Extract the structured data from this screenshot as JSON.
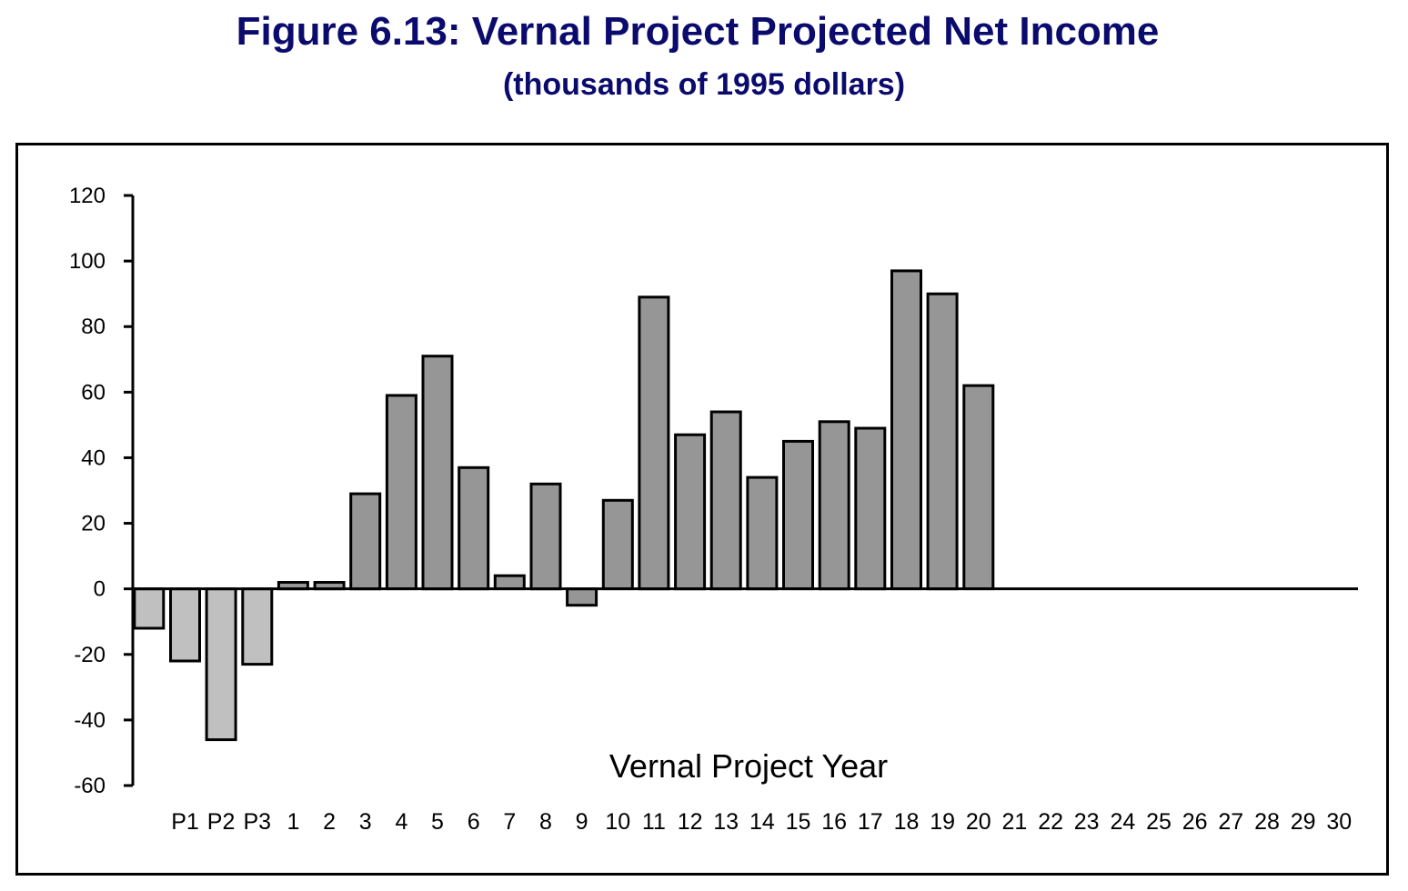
{
  "page": {
    "title": "Figure 6.13: Vernal Project Projected Net Income",
    "subtitle": "(thousands of 1995 dollars)"
  },
  "chart_data": {
    "type": "bar",
    "title": "Figure 6.13: Vernal Project Projected Net Income",
    "subtitle": "(thousands of 1995 dollars)",
    "xlabel": "Vernal Project Year",
    "ylabel": "",
    "ylim": [
      -60,
      120
    ],
    "yticks": [
      120,
      100,
      80,
      60,
      40,
      20,
      0,
      -20,
      -40,
      -60
    ],
    "categories": [
      "",
      "P1",
      "P2",
      "P3",
      "1",
      "2",
      "3",
      "4",
      "5",
      "6",
      "7",
      "8",
      "9",
      "10",
      "11",
      "12",
      "13",
      "14",
      "15",
      "16",
      "17",
      "18",
      "19",
      "20",
      "21",
      "22",
      "23",
      "24",
      "25",
      "26",
      "27",
      "28",
      "29",
      "30"
    ],
    "values": [
      -12,
      -22,
      -46,
      -23,
      2,
      2,
      29,
      59,
      71,
      37,
      4,
      32,
      -5,
      27,
      89,
      47,
      54,
      34,
      45,
      51,
      49,
      97,
      90,
      62,
      null,
      null,
      null,
      null,
      null,
      null,
      null,
      null,
      null,
      null
    ],
    "pre_project_categories": [
      "",
      "P1",
      "P2",
      "P3"
    ],
    "colors": {
      "pre_project_bar": "#c0c0c0",
      "project_bar": "#969696",
      "bar_outline": "#000000",
      "title": "#0b0b6e"
    },
    "grid": false,
    "legend": "none"
  }
}
